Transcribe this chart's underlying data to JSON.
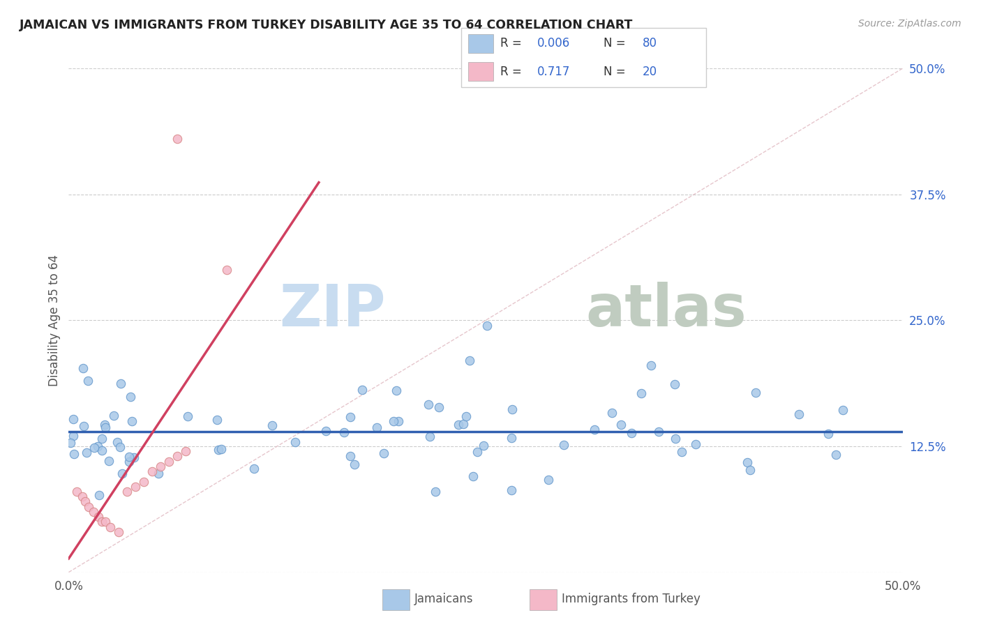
{
  "title": "JAMAICAN VS IMMIGRANTS FROM TURKEY DISABILITY AGE 35 TO 64 CORRELATION CHART",
  "source": "Source: ZipAtlas.com",
  "ylabel": "Disability Age 35 to 64",
  "xlim": [
    0.0,
    0.5
  ],
  "ylim": [
    0.0,
    0.5
  ],
  "right_ytick_labels": [
    "12.5%",
    "25.0%",
    "37.5%",
    "50.0%"
  ],
  "right_yticks": [
    0.125,
    0.25,
    0.375,
    0.5
  ],
  "blue_color": "#A8C8E8",
  "pink_color": "#F4B8C8",
  "blue_edge_color": "#6699CC",
  "pink_edge_color": "#D88888",
  "blue_line_color": "#3060B0",
  "pink_line_color": "#D04060",
  "diagonal_color": "#E0B8C0",
  "legend_R1": "0.006",
  "legend_N1": "80",
  "legend_R2": "0.717",
  "legend_N2": "20",
  "legend_label1": "Jamaicans",
  "legend_label2": "Immigrants from Turkey",
  "blue_N": 80,
  "pink_N": 20,
  "background_color": "#FFFFFF",
  "grid_color": "#CCCCCC",
  "title_color": "#222222",
  "accent_color": "#3366CC",
  "watermark_zip_color": "#C8DCF0",
  "watermark_atlas_color": "#C0CCC0"
}
